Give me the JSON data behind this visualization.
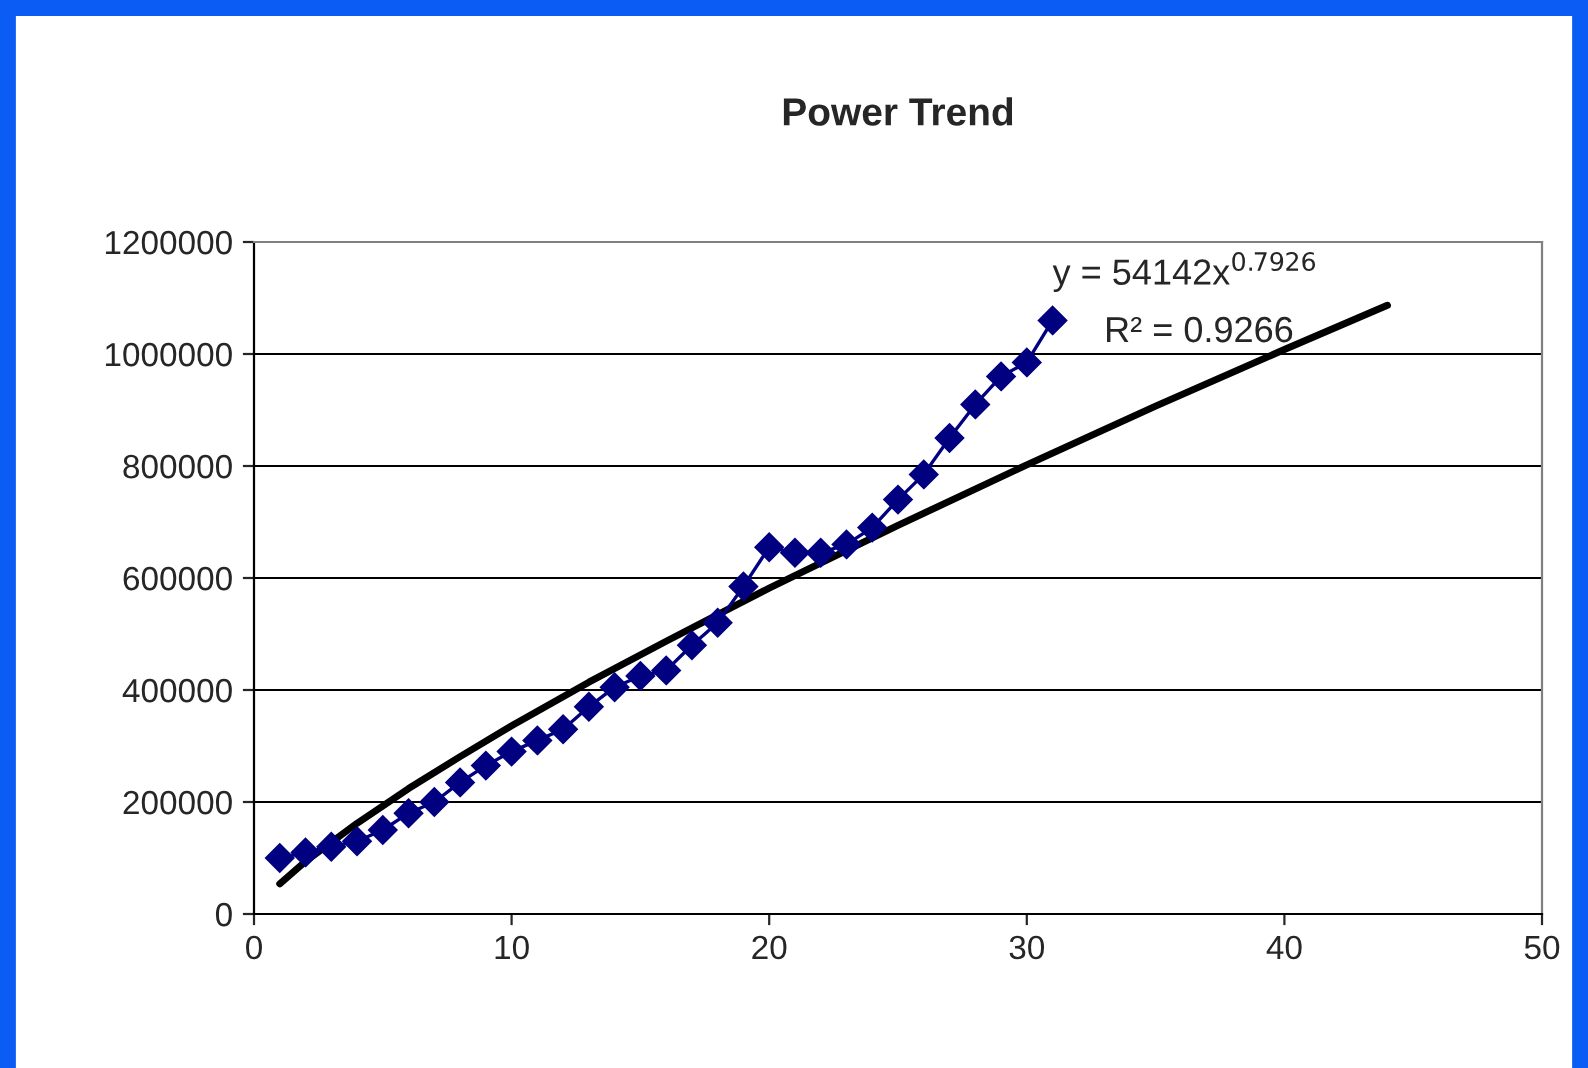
{
  "chart_data": {
    "type": "line",
    "title": "Power Trend",
    "xlim": [
      0,
      50
    ],
    "xticks": [
      0,
      10,
      20,
      30,
      40,
      50
    ],
    "ylim": [
      0,
      1200000
    ],
    "yticks": [
      0,
      200000,
      400000,
      600000,
      800000,
      1000000,
      1200000
    ],
    "grid": "y",
    "legend": false,
    "series": [
      {
        "marker": "diamond",
        "line_style": "solid",
        "color": "#000080",
        "x": [
          1,
          2,
          3,
          4,
          5,
          6,
          7,
          8,
          9,
          10,
          11,
          12,
          13,
          14,
          15,
          16,
          17,
          18,
          19,
          20,
          21,
          22,
          23,
          24,
          25,
          26,
          27,
          28,
          29,
          30,
          31
        ],
        "values": [
          100000,
          110000,
          120000,
          130000,
          150000,
          180000,
          200000,
          235000,
          265000,
          290000,
          310000,
          330000,
          370000,
          405000,
          425000,
          435000,
          480000,
          520000,
          585000,
          655000,
          645000,
          645000,
          660000,
          690000,
          740000,
          785000,
          850000,
          910000,
          960000,
          985000,
          1060000
        ]
      },
      {
        "marker": "none",
        "line_style": "solid",
        "color": "#000000",
        "x": [
          1,
          2,
          4,
          6,
          8,
          10,
          13,
          16,
          20,
          25,
          30,
          35,
          40,
          44
        ],
        "values": [
          54000,
          94000,
          162000,
          224000,
          281000,
          336000,
          414000,
          487000,
          582000,
          694000,
          802000,
          907000,
          1008000,
          1087000
        ]
      }
    ],
    "annotations": [
      "y = 54142x$^{0.7926}$",
      "R² = 0.9266"
    ]
  }
}
